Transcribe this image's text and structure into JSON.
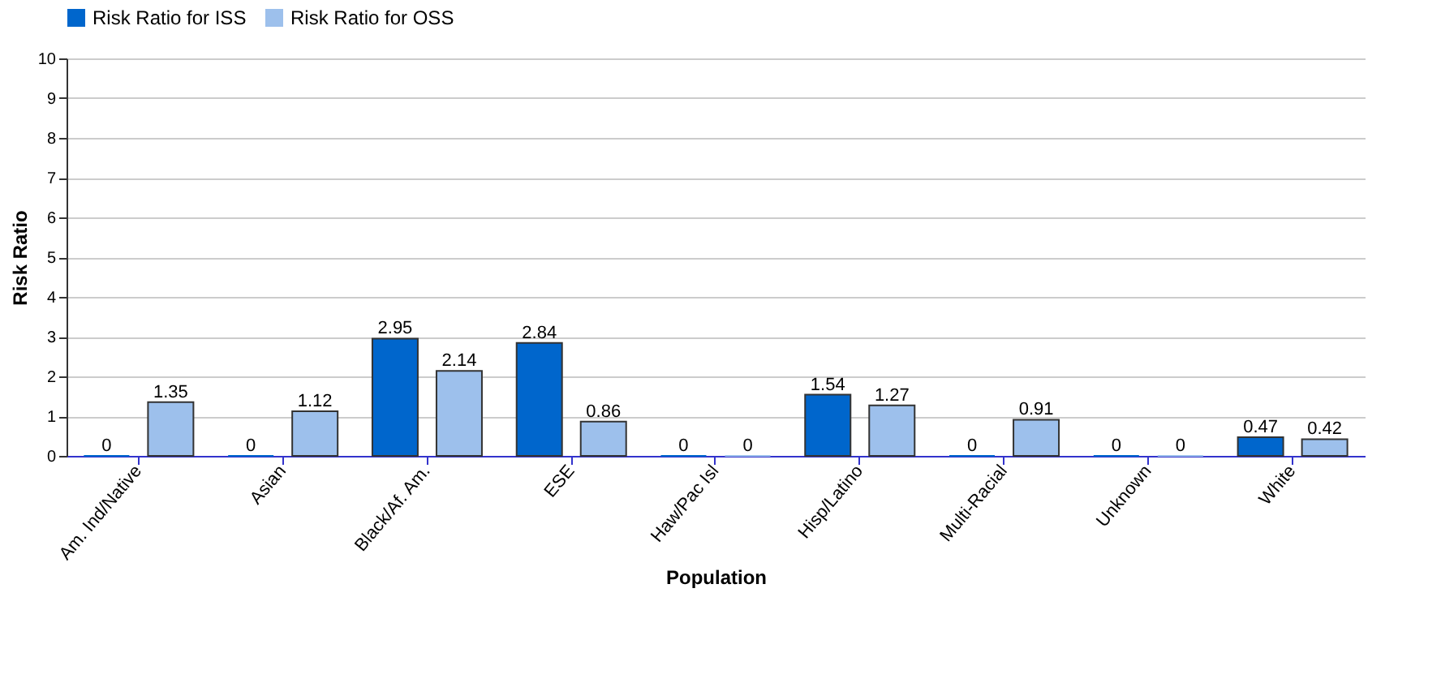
{
  "chart_data": {
    "type": "bar",
    "xlabel": "Population",
    "ylabel": "Risk Ratio",
    "categories": [
      "Am. Ind/Native",
      "Asian",
      "Black/Af. Am.",
      "ESE",
      "Haw/Pac Isl",
      "Hisp/Latino",
      "Multi-Racial",
      "Unknown",
      "White"
    ],
    "series": [
      {
        "name": "Risk Ratio for ISS",
        "color": "#0066cc",
        "values": [
          0,
          0,
          2.95,
          2.84,
          0,
          1.54,
          0,
          0,
          0.47
        ]
      },
      {
        "name": "Risk Ratio for OSS",
        "color": "#9dc0ec",
        "values": [
          1.35,
          1.12,
          2.14,
          0.86,
          0,
          1.27,
          0.91,
          0,
          0.42
        ]
      }
    ],
    "ylim": [
      0,
      10
    ],
    "yticks": [
      0,
      1,
      2,
      3,
      4,
      5,
      6,
      7,
      8,
      9,
      10
    ],
    "grid": "y",
    "legend": "top left",
    "data_labels": true
  }
}
